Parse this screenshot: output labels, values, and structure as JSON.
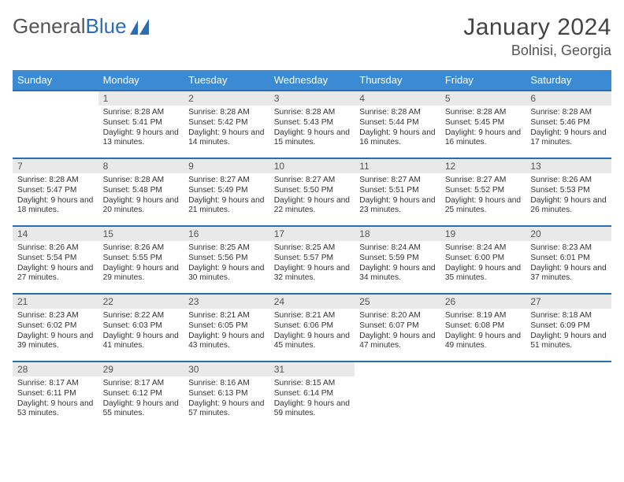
{
  "logo": {
    "part1": "General",
    "part2": "Blue"
  },
  "title": {
    "month": "January 2024",
    "location": "Bolnisi, Georgia"
  },
  "colors": {
    "header_bg": "#3b8bd4",
    "header_fg": "#ffffff",
    "daynum_bg": "#e9e9e9",
    "rule": "#2a6db0",
    "logo_gray": "#555555",
    "logo_blue": "#2a6db0"
  },
  "weekdays": [
    "Sunday",
    "Monday",
    "Tuesday",
    "Wednesday",
    "Thursday",
    "Friday",
    "Saturday"
  ],
  "first_weekday_offset": 1,
  "days": [
    {
      "n": 1,
      "sunrise": "8:28 AM",
      "sunset": "5:41 PM",
      "daylight": "9 hours and 13 minutes."
    },
    {
      "n": 2,
      "sunrise": "8:28 AM",
      "sunset": "5:42 PM",
      "daylight": "9 hours and 14 minutes."
    },
    {
      "n": 3,
      "sunrise": "8:28 AM",
      "sunset": "5:43 PM",
      "daylight": "9 hours and 15 minutes."
    },
    {
      "n": 4,
      "sunrise": "8:28 AM",
      "sunset": "5:44 PM",
      "daylight": "9 hours and 16 minutes."
    },
    {
      "n": 5,
      "sunrise": "8:28 AM",
      "sunset": "5:45 PM",
      "daylight": "9 hours and 16 minutes."
    },
    {
      "n": 6,
      "sunrise": "8:28 AM",
      "sunset": "5:46 PM",
      "daylight": "9 hours and 17 minutes."
    },
    {
      "n": 7,
      "sunrise": "8:28 AM",
      "sunset": "5:47 PM",
      "daylight": "9 hours and 18 minutes."
    },
    {
      "n": 8,
      "sunrise": "8:28 AM",
      "sunset": "5:48 PM",
      "daylight": "9 hours and 20 minutes."
    },
    {
      "n": 9,
      "sunrise": "8:27 AM",
      "sunset": "5:49 PM",
      "daylight": "9 hours and 21 minutes."
    },
    {
      "n": 10,
      "sunrise": "8:27 AM",
      "sunset": "5:50 PM",
      "daylight": "9 hours and 22 minutes."
    },
    {
      "n": 11,
      "sunrise": "8:27 AM",
      "sunset": "5:51 PM",
      "daylight": "9 hours and 23 minutes."
    },
    {
      "n": 12,
      "sunrise": "8:27 AM",
      "sunset": "5:52 PM",
      "daylight": "9 hours and 25 minutes."
    },
    {
      "n": 13,
      "sunrise": "8:26 AM",
      "sunset": "5:53 PM",
      "daylight": "9 hours and 26 minutes."
    },
    {
      "n": 14,
      "sunrise": "8:26 AM",
      "sunset": "5:54 PM",
      "daylight": "9 hours and 27 minutes."
    },
    {
      "n": 15,
      "sunrise": "8:26 AM",
      "sunset": "5:55 PM",
      "daylight": "9 hours and 29 minutes."
    },
    {
      "n": 16,
      "sunrise": "8:25 AM",
      "sunset": "5:56 PM",
      "daylight": "9 hours and 30 minutes."
    },
    {
      "n": 17,
      "sunrise": "8:25 AM",
      "sunset": "5:57 PM",
      "daylight": "9 hours and 32 minutes."
    },
    {
      "n": 18,
      "sunrise": "8:24 AM",
      "sunset": "5:59 PM",
      "daylight": "9 hours and 34 minutes."
    },
    {
      "n": 19,
      "sunrise": "8:24 AM",
      "sunset": "6:00 PM",
      "daylight": "9 hours and 35 minutes."
    },
    {
      "n": 20,
      "sunrise": "8:23 AM",
      "sunset": "6:01 PM",
      "daylight": "9 hours and 37 minutes."
    },
    {
      "n": 21,
      "sunrise": "8:23 AM",
      "sunset": "6:02 PM",
      "daylight": "9 hours and 39 minutes."
    },
    {
      "n": 22,
      "sunrise": "8:22 AM",
      "sunset": "6:03 PM",
      "daylight": "9 hours and 41 minutes."
    },
    {
      "n": 23,
      "sunrise": "8:21 AM",
      "sunset": "6:05 PM",
      "daylight": "9 hours and 43 minutes."
    },
    {
      "n": 24,
      "sunrise": "8:21 AM",
      "sunset": "6:06 PM",
      "daylight": "9 hours and 45 minutes."
    },
    {
      "n": 25,
      "sunrise": "8:20 AM",
      "sunset": "6:07 PM",
      "daylight": "9 hours and 47 minutes."
    },
    {
      "n": 26,
      "sunrise": "8:19 AM",
      "sunset": "6:08 PM",
      "daylight": "9 hours and 49 minutes."
    },
    {
      "n": 27,
      "sunrise": "8:18 AM",
      "sunset": "6:09 PM",
      "daylight": "9 hours and 51 minutes."
    },
    {
      "n": 28,
      "sunrise": "8:17 AM",
      "sunset": "6:11 PM",
      "daylight": "9 hours and 53 minutes."
    },
    {
      "n": 29,
      "sunrise": "8:17 AM",
      "sunset": "6:12 PM",
      "daylight": "9 hours and 55 minutes."
    },
    {
      "n": 30,
      "sunrise": "8:16 AM",
      "sunset": "6:13 PM",
      "daylight": "9 hours and 57 minutes."
    },
    {
      "n": 31,
      "sunrise": "8:15 AM",
      "sunset": "6:14 PM",
      "daylight": "9 hours and 59 minutes."
    }
  ],
  "labels": {
    "sunrise": "Sunrise:",
    "sunset": "Sunset:",
    "daylight": "Daylight:"
  }
}
